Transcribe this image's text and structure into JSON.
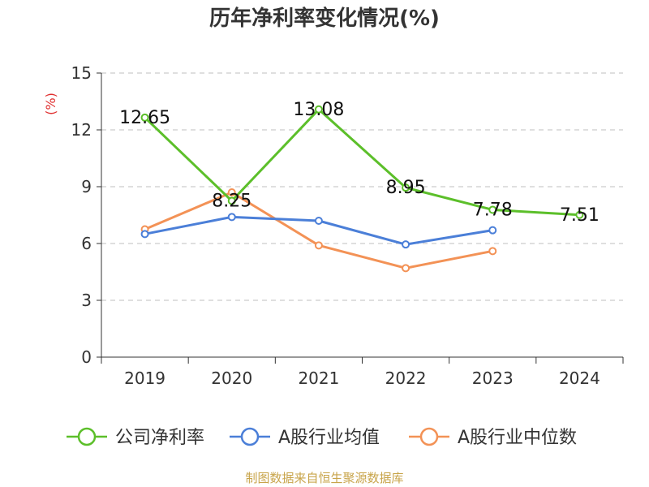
{
  "title": "历年净利率变化情况(%)",
  "source": "制图数据来自恒生聚源数据库",
  "chart_data": {
    "type": "line",
    "categories": [
      "2019",
      "2020",
      "2021",
      "2022",
      "2023",
      "2024"
    ],
    "ylabel": "(%)",
    "ylim": [
      0,
      15
    ],
    "yticks": [
      0,
      3,
      6,
      9,
      12,
      15
    ],
    "grid": true,
    "legend_position": "bottom",
    "series": [
      {
        "name": "公司净利率",
        "color": "#5cbf2a",
        "values": [
          12.65,
          8.25,
          13.08,
          8.95,
          7.78,
          7.51
        ],
        "data_labels": [
          "12.65",
          "8.25",
          "13.08",
          "8.95",
          "7.78",
          "7.51"
        ]
      },
      {
        "name": "A股行业均值",
        "color": "#4b7fd8",
        "values": [
          6.5,
          7.4,
          7.2,
          5.95,
          6.7,
          null
        ]
      },
      {
        "name": "A股行业中位数",
        "color": "#f39256",
        "values": [
          6.75,
          8.7,
          5.9,
          4.7,
          5.6,
          null
        ]
      }
    ]
  }
}
